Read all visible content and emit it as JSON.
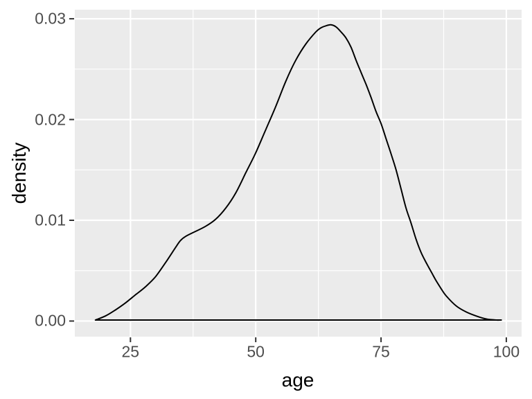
{
  "chart_data": {
    "type": "line",
    "subtype": "density-curve",
    "title": "",
    "xlabel": "age",
    "ylabel": "density",
    "legend": "none",
    "grid": true,
    "x_axis": {
      "label": "age",
      "ticks": [
        25,
        50,
        75,
        100
      ],
      "tick_labels": [
        "25",
        "50",
        "75",
        "100"
      ],
      "minor_ticks": [
        37.5,
        62.5,
        87.5
      ],
      "range": [
        13.9,
        103.05
      ]
    },
    "y_axis": {
      "label": "density",
      "ticks": [
        0,
        0.01,
        0.02,
        0.03
      ],
      "tick_labels": [
        "0.00",
        "0.01",
        "0.02",
        "0.03"
      ],
      "minor_ticks": [
        0.005,
        0.015,
        0.025
      ],
      "range": [
        -0.00155,
        0.0309
      ]
    },
    "peak": {
      "age": 64.5,
      "density": 0.0294
    },
    "data_extent": {
      "age_min": 18,
      "age_max": 99
    },
    "points": [
      [
        18,
        0.0001
      ],
      [
        20,
        0.0005
      ],
      [
        22,
        0.0011
      ],
      [
        24,
        0.0018
      ],
      [
        26,
        0.0026
      ],
      [
        28,
        0.0034
      ],
      [
        30,
        0.0044
      ],
      [
        32,
        0.0058
      ],
      [
        34,
        0.0073
      ],
      [
        35,
        0.008
      ],
      [
        36,
        0.0084
      ],
      [
        38,
        0.0089
      ],
      [
        40,
        0.0094
      ],
      [
        42,
        0.0101
      ],
      [
        44,
        0.0112
      ],
      [
        46,
        0.0127
      ],
      [
        48,
        0.0147
      ],
      [
        50,
        0.0167
      ],
      [
        52,
        0.019
      ],
      [
        54,
        0.0213
      ],
      [
        56,
        0.0238
      ],
      [
        58,
        0.0259
      ],
      [
        60,
        0.0275
      ],
      [
        62,
        0.0287
      ],
      [
        63,
        0.0291
      ],
      [
        64,
        0.0293
      ],
      [
        65,
        0.0294
      ],
      [
        66,
        0.0292
      ],
      [
        67,
        0.0287
      ],
      [
        68,
        0.0281
      ],
      [
        69,
        0.0272
      ],
      [
        70,
        0.0259
      ],
      [
        71,
        0.0247
      ],
      [
        72,
        0.0235
      ],
      [
        73,
        0.0222
      ],
      [
        74,
        0.0208
      ],
      [
        75,
        0.0196
      ],
      [
        76,
        0.0181
      ],
      [
        77,
        0.0166
      ],
      [
        78,
        0.015
      ],
      [
        79,
        0.0131
      ],
      [
        80,
        0.0112
      ],
      [
        81,
        0.0097
      ],
      [
        82,
        0.0081
      ],
      [
        83,
        0.0068
      ],
      [
        84,
        0.0058
      ],
      [
        85,
        0.0049
      ],
      [
        86,
        0.004
      ],
      [
        87,
        0.0032
      ],
      [
        88,
        0.0025
      ],
      [
        90,
        0.0015
      ],
      [
        92,
        0.0009
      ],
      [
        94,
        0.0005
      ],
      [
        96,
        0.0002
      ],
      [
        98,
        0.0001
      ],
      [
        99,
        0.0001
      ]
    ],
    "colors": {
      "figure_background": "#FFFFFF",
      "panel_background": "#EBEBEB",
      "grid_major": "#FFFFFF",
      "grid_minor": "#FFFFFF",
      "curve": "#000000",
      "axis_text": "#4D4D4D",
      "axis_title": "#000000",
      "tick_marks": "#333333"
    }
  }
}
